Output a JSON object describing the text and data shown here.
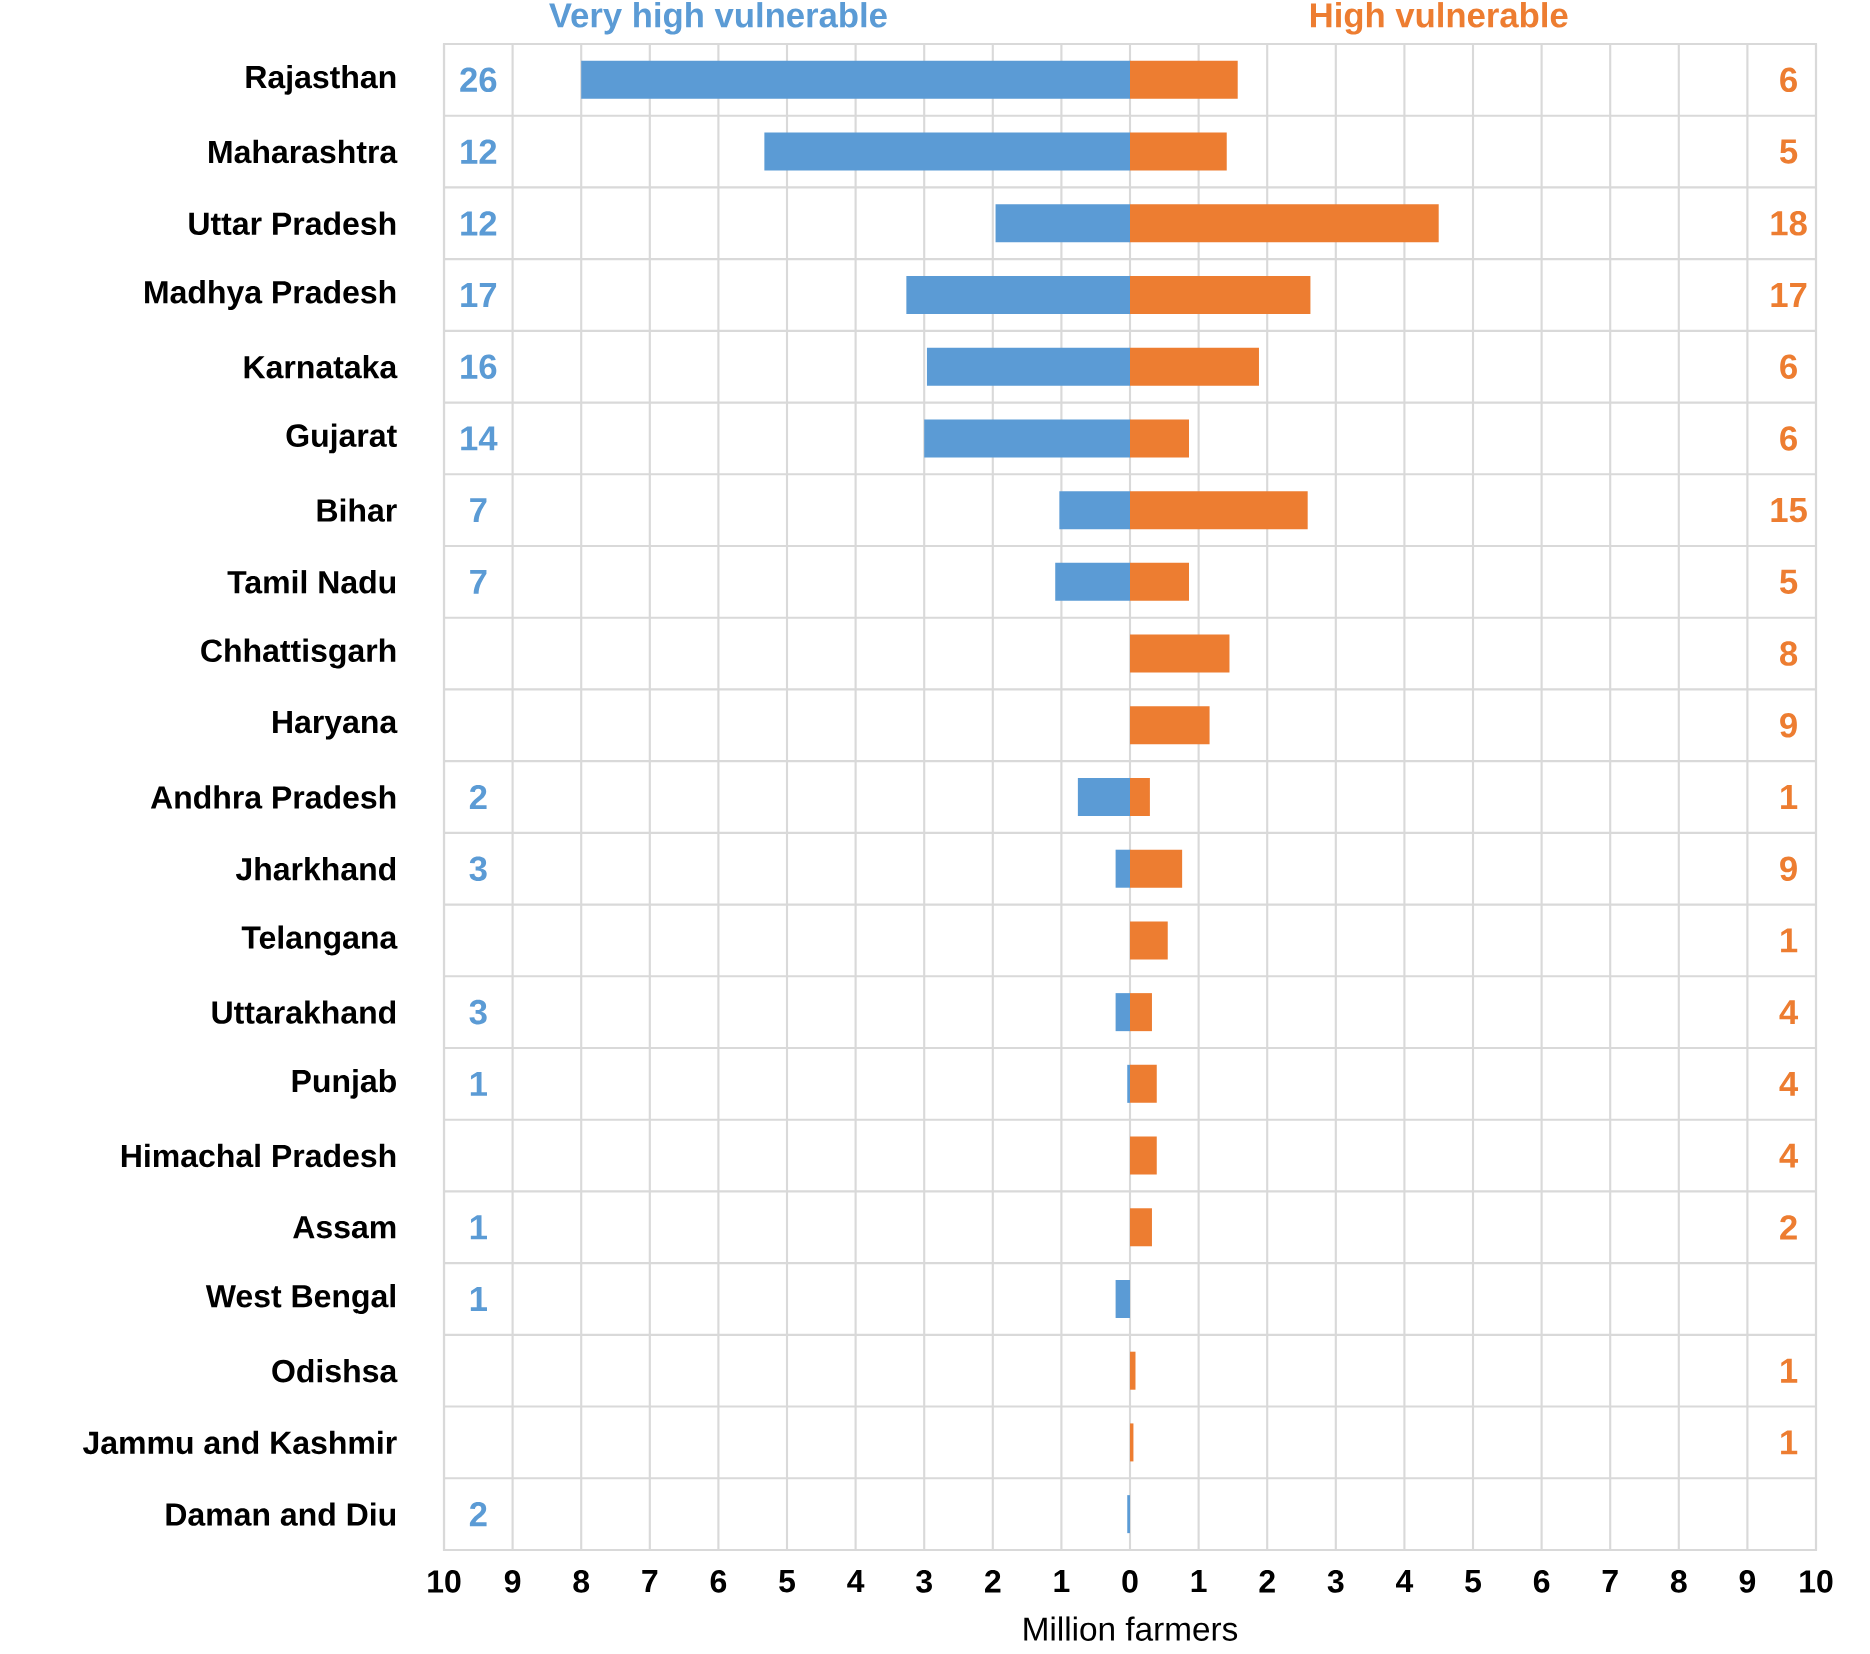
{
  "chart_data": {
    "type": "bar",
    "orientation": "horizontal",
    "stacked": true,
    "xlabel": "Million farmers",
    "categories": [
      "Rajasthan",
      "Maharashtra",
      "Uttar Pradesh",
      "Madhya Pradesh",
      "Karnataka",
      "Gujarat",
      "Bihar",
      "Tamil Nadu",
      "Chhattisgarh",
      "Haryana",
      "Andhra Pradesh",
      "Jharkhand",
      "Telangana",
      "Uttarakhand",
      "Punjab",
      "Himachal Pradesh",
      "Assam",
      "West Bengal",
      "Odishsa",
      "Jammu and Kashmir",
      "Daman and Diu"
    ],
    "series": [
      {
        "name": "Very high vulnerable",
        "color": "#5b9bd5",
        "values": [
          -8.0,
          -5.33,
          -1.96,
          -3.26,
          -2.96,
          -3.0,
          -1.03,
          -1.09,
          null,
          null,
          -0.76,
          -0.21,
          null,
          -0.21,
          -0.04,
          null,
          0,
          -0.21,
          null,
          null,
          -0.04
        ]
      },
      {
        "name": "High vulnerable",
        "color": "#ed7d31",
        "values": [
          1.57,
          1.41,
          4.5,
          2.63,
          1.88,
          0.86,
          2.59,
          0.86,
          1.45,
          1.16,
          0.29,
          0.76,
          0.55,
          0.32,
          0.39,
          0.39,
          0.32,
          null,
          0.08,
          0.05,
          null
        ]
      }
    ],
    "xlim": [
      -10,
      10
    ],
    "xticks": [
      {
        "value": -10,
        "label": "10"
      },
      {
        "value": -9,
        "label": "9"
      },
      {
        "value": -8,
        "label": "8"
      },
      {
        "value": -7,
        "label": "7"
      },
      {
        "value": -6,
        "label": "6"
      },
      {
        "value": -5,
        "label": "5"
      },
      {
        "value": -4,
        "label": "4"
      },
      {
        "value": -3,
        "label": "3"
      },
      {
        "value": -2,
        "label": "2"
      },
      {
        "value": -1,
        "label": "1"
      },
      0,
      1,
      2,
      3,
      4,
      5,
      6,
      7,
      8,
      9,
      10
    ],
    "grid": true,
    "annotations": [
      "26",
      "12",
      "12",
      "17",
      "16",
      "14",
      "7",
      "7",
      "2",
      "3",
      "3",
      "1",
      "1",
      "1",
      "2",
      "6",
      "5",
      "18",
      "17",
      "6",
      "6",
      "15",
      "5",
      "8",
      "9",
      "1",
      "9",
      "1",
      "4",
      "4",
      "4",
      "2",
      "1",
      "1"
    ]
  }
}
